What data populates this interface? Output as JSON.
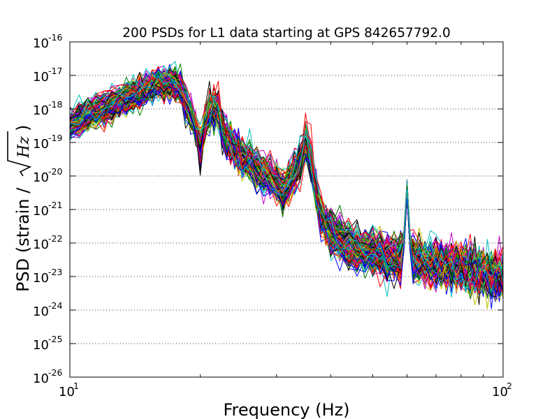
{
  "chart_data": {
    "type": "line",
    "title": "200 PSDs for L1 data starting at GPS 842657792.0",
    "xlabel": "Frequency (Hz)",
    "ylabel_prefix": "PSD (strain / ",
    "ylabel_math": "Hz",
    "ylabel_suffix": ")",
    "x_scale": "log",
    "y_scale": "log",
    "xlim": [
      10,
      100
    ],
    "ylim": [
      1e-26,
      1e-16
    ],
    "x_ticks": [
      {
        "base": "10",
        "exp": "1",
        "value": 10
      },
      {
        "base": "10",
        "exp": "2",
        "value": 100
      }
    ],
    "y_ticks": [
      {
        "base": "10",
        "exp": "-26",
        "value": -26
      },
      {
        "base": "10",
        "exp": "-25",
        "value": -25
      },
      {
        "base": "10",
        "exp": "-24",
        "value": -24
      },
      {
        "base": "10",
        "exp": "-23",
        "value": -23
      },
      {
        "base": "10",
        "exp": "-22",
        "value": -22
      },
      {
        "base": "10",
        "exp": "-21",
        "value": -21
      },
      {
        "base": "10",
        "exp": "-20",
        "value": -20
      },
      {
        "base": "10",
        "exp": "-19",
        "value": -19
      },
      {
        "base": "10",
        "exp": "-18",
        "value": -18
      },
      {
        "base": "10",
        "exp": "-17",
        "value": -17
      },
      {
        "base": "10",
        "exp": "-16",
        "value": -16
      }
    ],
    "grid": "horizontal dotted",
    "series_count": 200,
    "series_colors": [
      "#0000ff",
      "#008000",
      "#ff0000",
      "#00bfbf",
      "#bf00bf",
      "#bfbf00",
      "#000000"
    ],
    "typical_series": {
      "frequency_hz": [
        10,
        10.5,
        11,
        11.5,
        12,
        12.5,
        13,
        13.5,
        14,
        14.5,
        15,
        15.5,
        16,
        16.5,
        17,
        17.5,
        18,
        18.5,
        19,
        19.5,
        20,
        20.5,
        21,
        21.5,
        22,
        22.5,
        23,
        23.5,
        24,
        24.5,
        25,
        26,
        27,
        28,
        29,
        30,
        31,
        32,
        33,
        34,
        35,
        36,
        37,
        38,
        39,
        40,
        42,
        44,
        46,
        48,
        50,
        52,
        54,
        56,
        58,
        59,
        60,
        61,
        62,
        64,
        66,
        68,
        70,
        72,
        74,
        76,
        78,
        80,
        82,
        84,
        86,
        88,
        90,
        92,
        94,
        96,
        98,
        100
      ],
      "log10_psd": [
        -18.5,
        -18.3,
        -18.2,
        -18.1,
        -18.0,
        -17.9,
        -17.8,
        -17.7,
        -17.6,
        -17.5,
        -17.4,
        -17.3,
        -17.25,
        -17.3,
        -17.2,
        -17.3,
        -17.4,
        -17.8,
        -18.1,
        -18.5,
        -19.2,
        -18.4,
        -18.1,
        -18.0,
        -18.0,
        -18.6,
        -18.9,
        -19.0,
        -19.2,
        -19.3,
        -19.5,
        -19.6,
        -19.8,
        -19.9,
        -20.1,
        -20.3,
        -20.5,
        -20.2,
        -19.9,
        -19.6,
        -19.0,
        -19.6,
        -20.4,
        -21.2,
        -21.5,
        -21.7,
        -21.9,
        -22.1,
        -22.2,
        -22.25,
        -22.3,
        -22.35,
        -22.4,
        -22.45,
        -22.5,
        -22.0,
        -20.4,
        -22.0,
        -22.5,
        -22.55,
        -22.6,
        -22.6,
        -22.65,
        -22.65,
        -22.7,
        -22.7,
        -22.75,
        -22.75,
        -22.8,
        -22.8,
        -22.8,
        -22.85,
        -22.85,
        -22.9,
        -22.9,
        -22.95,
        -22.95,
        -23.0
      ]
    }
  }
}
